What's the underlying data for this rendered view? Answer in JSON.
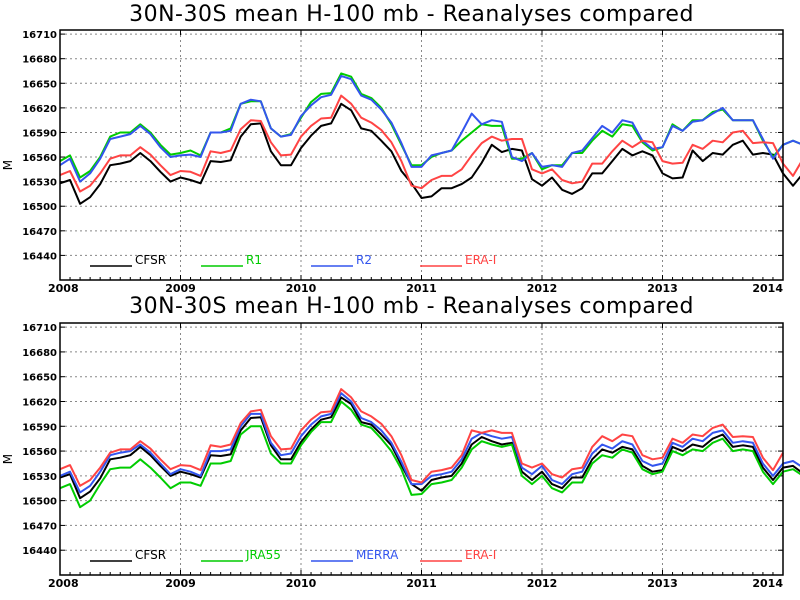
{
  "chart_data": [
    {
      "type": "line",
      "title": "30N-30S mean H-100 mb - Reanalyses compared",
      "ylabel": "M",
      "xlabel": "",
      "xlim": [
        2008.0,
        2014.0
      ],
      "ylim": [
        16410,
        16715
      ],
      "yticks": [
        16440,
        16470,
        16500,
        16530,
        16560,
        16590,
        16620,
        16650,
        16680,
        16710
      ],
      "xticks": [
        2008,
        2009,
        2010,
        2011,
        2012,
        2013,
        2014
      ],
      "grid": true,
      "legend": "bottom-left, inside",
      "series": [
        {
          "name": "CFSR",
          "color": "#000000",
          "start": 2008.0,
          "step": 0.0833333,
          "values": [
            16528,
            16532,
            16503,
            16511,
            16527,
            16550,
            16552,
            16555,
            16565,
            16555,
            16542,
            16530,
            16535,
            16532,
            16528,
            16555,
            16554,
            16556,
            16585,
            16600,
            16601,
            16567,
            16550,
            16550,
            16571,
            16586,
            16598,
            16601,
            16625,
            16617,
            16595,
            16592,
            16580,
            16567,
            16543,
            16528,
            16510,
            16512,
            16522,
            16522,
            16527,
            16535,
            16553,
            16575,
            16566,
            16570,
            16568,
            16533,
            16525,
            16535,
            16520,
            16515,
            16522,
            16540,
            16540,
            16555,
            16570,
            16562,
            16567,
            16562,
            16540,
            16534,
            16535,
            16568,
            16555,
            16565,
            16563,
            16575,
            16580,
            16563,
            16565,
            16563,
            16540,
            16525,
            16540,
            16542,
            16533
          ]
        },
        {
          "name": "R1",
          "color": "#00cc00",
          "start": 2008.0,
          "step": 0.0833333,
          "values": [
            16555,
            16562,
            16535,
            16543,
            16560,
            16585,
            16590,
            16590,
            16600,
            16590,
            16575,
            16563,
            16565,
            16568,
            16562,
            16590,
            16590,
            16595,
            16625,
            16628,
            16628,
            16595,
            16585,
            16588,
            16608,
            16627,
            16637,
            16638,
            16662,
            16658,
            16637,
            16632,
            16620,
            16600,
            16575,
            16550,
            16550,
            16560,
            16565,
            16568,
            16580,
            16590,
            16600,
            16598,
            16598,
            16558,
            16558,
            16565,
            16545,
            16550,
            16550,
            16565,
            16565,
            16580,
            16592,
            16585,
            16600,
            16598,
            16578,
            16568,
            16572,
            16600,
            16592,
            16605,
            16605,
            16615,
            16618,
            16605,
            16605,
            16605,
            16580,
            16560,
            16575,
            16580,
            16575
          ]
        },
        {
          "name": "R2",
          "color": "#3355ee",
          "start": 2008.0,
          "step": 0.0833333,
          "values": [
            16550,
            16558,
            16530,
            16540,
            16558,
            16582,
            16585,
            16588,
            16598,
            16588,
            16572,
            16560,
            16562,
            16563,
            16560,
            16590,
            16590,
            16592,
            16625,
            16630,
            16628,
            16595,
            16585,
            16587,
            16610,
            16623,
            16633,
            16636,
            16659,
            16655,
            16635,
            16630,
            16618,
            16602,
            16577,
            16548,
            16548,
            16562,
            16565,
            16568,
            16590,
            16613,
            16600,
            16605,
            16603,
            16560,
            16555,
            16565,
            16548,
            16550,
            16548,
            16565,
            16568,
            16583,
            16598,
            16590,
            16605,
            16602,
            16580,
            16570,
            16572,
            16598,
            16592,
            16603,
            16605,
            16613,
            16620,
            16605,
            16605,
            16605,
            16582,
            16558,
            16575,
            16580,
            16575
          ]
        },
        {
          "name": "ERA-I",
          "color": "#ff4444",
          "start": 2008.0,
          "step": 0.0833333,
          "values": [
            16538,
            16543,
            16518,
            16525,
            16540,
            16558,
            16562,
            16562,
            16572,
            16563,
            16550,
            16538,
            16543,
            16542,
            16537,
            16567,
            16565,
            16568,
            16594,
            16605,
            16604,
            16578,
            16562,
            16563,
            16585,
            16598,
            16607,
            16608,
            16635,
            16625,
            16608,
            16602,
            16593,
            16578,
            16555,
            16525,
            16522,
            16532,
            16537,
            16537,
            16545,
            16562,
            16577,
            16585,
            16580,
            16582,
            16582,
            16545,
            16540,
            16545,
            16532,
            16528,
            16530,
            16552,
            16552,
            16567,
            16580,
            16572,
            16580,
            16578,
            16555,
            16552,
            16553,
            16575,
            16570,
            16580,
            16578,
            16590,
            16592,
            16577,
            16578,
            16577,
            16552,
            16537,
            16558
          ]
        }
      ],
      "x_ticks_labels": [
        "2008",
        "2009",
        "2010",
        "2011",
        "2012",
        "2013",
        "2014"
      ]
    },
    {
      "type": "line",
      "title": "30N-30S mean H-100 mb - Reanalyses compared",
      "ylabel": "M",
      "xlabel": "",
      "xlim": [
        2008.0,
        2014.0
      ],
      "ylim": [
        16410,
        16715
      ],
      "yticks": [
        16440,
        16470,
        16500,
        16530,
        16560,
        16590,
        16620,
        16650,
        16680,
        16710
      ],
      "xticks": [
        2008,
        2009,
        2010,
        2011,
        2012,
        2013,
        2014
      ],
      "grid": true,
      "legend": "bottom-left, inside",
      "series": [
        {
          "name": "CFSR",
          "color": "#000000",
          "start": 2008.0,
          "step": 0.0833333,
          "values": [
            16528,
            16532,
            16503,
            16511,
            16527,
            16550,
            16552,
            16555,
            16565,
            16555,
            16542,
            16530,
            16535,
            16532,
            16528,
            16555,
            16554,
            16556,
            16585,
            16600,
            16601,
            16567,
            16550,
            16550,
            16571,
            16586,
            16598,
            16601,
            16625,
            16617,
            16595,
            16592,
            16580,
            16567,
            16543,
            16520,
            16512,
            16525,
            16528,
            16530,
            16545,
            16568,
            16577,
            16572,
            16568,
            16570,
            16535,
            16525,
            16535,
            16520,
            16515,
            16528,
            16528,
            16550,
            16562,
            16558,
            16565,
            16562,
            16542,
            16535,
            16537,
            16565,
            16560,
            16568,
            16565,
            16575,
            16580,
            16565,
            16567,
            16565,
            16540,
            16525,
            16540,
            16542,
            16533
          ]
        },
        {
          "name": "JRA55",
          "color": "#00cc00",
          "start": 2008.0,
          "step": 0.0833333,
          "values": [
            16515,
            16520,
            16492,
            16500,
            16520,
            16538,
            16540,
            16540,
            16550,
            16540,
            16528,
            16515,
            16522,
            16522,
            16518,
            16545,
            16545,
            16548,
            16580,
            16590,
            16590,
            16557,
            16545,
            16545,
            16567,
            16583,
            16595,
            16595,
            16620,
            16610,
            16592,
            16588,
            16575,
            16560,
            16538,
            16507,
            16508,
            16520,
            16522,
            16525,
            16540,
            16562,
            16572,
            16568,
            16565,
            16568,
            16530,
            16520,
            16530,
            16515,
            16510,
            16522,
            16522,
            16545,
            16555,
            16552,
            16562,
            16558,
            16538,
            16532,
            16535,
            16560,
            16555,
            16562,
            16560,
            16570,
            16575,
            16560,
            16562,
            16560,
            16535,
            16520,
            16535,
            16538,
            16530
          ]
        },
        {
          "name": "MERRA",
          "color": "#3355ee",
          "start": 2008.0,
          "step": 0.0833333,
          "values": [
            16530,
            16535,
            16510,
            16518,
            16535,
            16555,
            16558,
            16560,
            16568,
            16558,
            16545,
            16532,
            16538,
            16535,
            16530,
            16560,
            16560,
            16562,
            16590,
            16605,
            16605,
            16570,
            16555,
            16557,
            16578,
            16592,
            16602,
            16605,
            16630,
            16620,
            16600,
            16595,
            16585,
            16570,
            16547,
            16520,
            16520,
            16530,
            16532,
            16535,
            16550,
            16575,
            16582,
            16578,
            16575,
            16577,
            16540,
            16532,
            16542,
            16525,
            16520,
            16532,
            16535,
            16557,
            16568,
            16563,
            16572,
            16568,
            16548,
            16542,
            16545,
            16570,
            16565,
            16575,
            16572,
            16582,
            16585,
            16570,
            16572,
            16570,
            16545,
            16530,
            16545,
            16548,
            16540
          ]
        },
        {
          "name": "ERA-I",
          "color": "#ff4444",
          "start": 2008.0,
          "step": 0.0833333,
          "values": [
            16538,
            16543,
            16518,
            16525,
            16540,
            16558,
            16562,
            16562,
            16572,
            16563,
            16550,
            16538,
            16543,
            16542,
            16537,
            16567,
            16565,
            16568,
            16594,
            16608,
            16610,
            16578,
            16562,
            16563,
            16585,
            16598,
            16607,
            16608,
            16635,
            16625,
            16608,
            16602,
            16593,
            16578,
            16555,
            16525,
            16522,
            16535,
            16537,
            16540,
            16555,
            16585,
            16582,
            16585,
            16582,
            16582,
            16545,
            16540,
            16545,
            16532,
            16528,
            16538,
            16540,
            16565,
            16578,
            16572,
            16580,
            16578,
            16555,
            16550,
            16552,
            16575,
            16570,
            16580,
            16578,
            16588,
            16592,
            16577,
            16578,
            16577,
            16552,
            16537,
            16558
          ]
        }
      ],
      "x_ticks_labels": [
        "2008",
        "2009",
        "2010",
        "2011",
        "2012",
        "2013",
        "2014"
      ]
    }
  ]
}
